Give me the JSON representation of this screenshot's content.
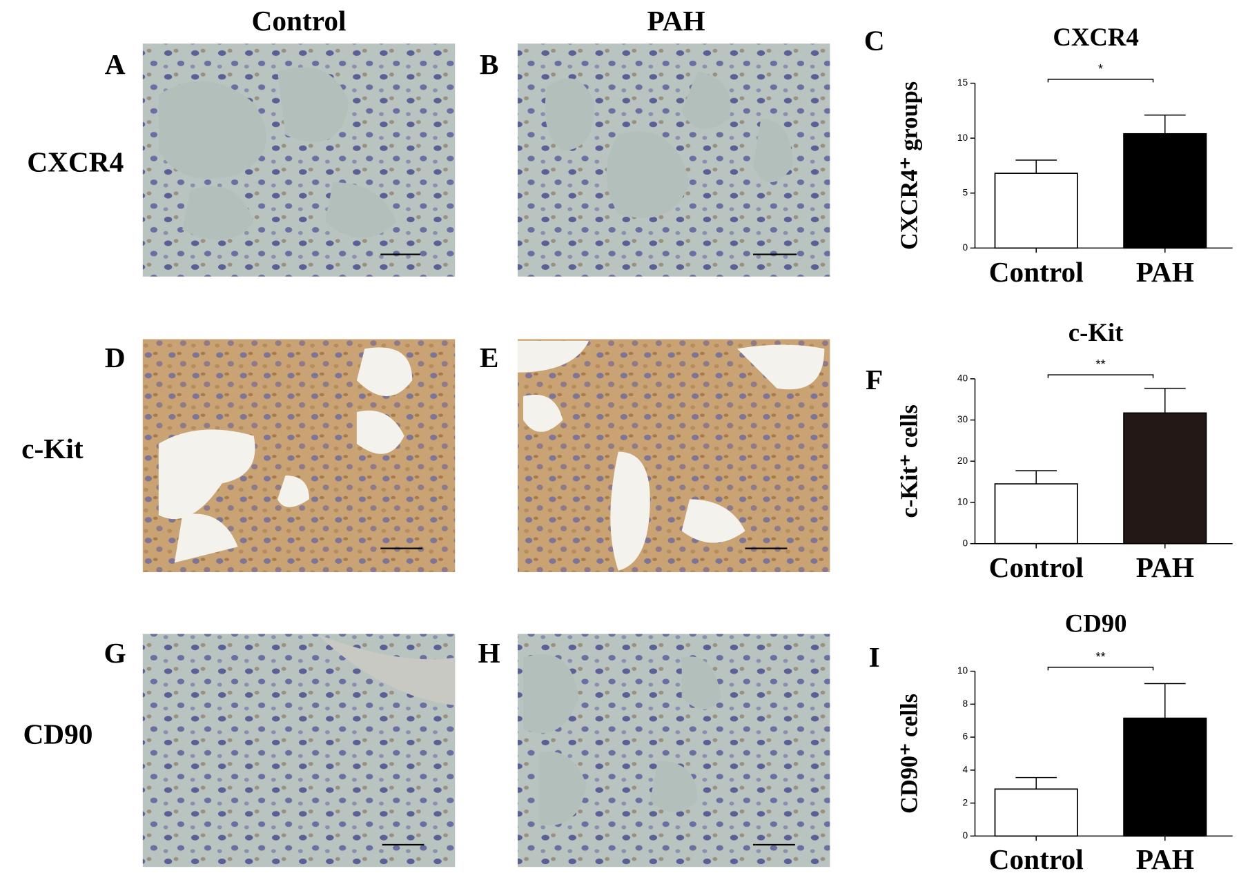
{
  "column_headers": [
    "Control",
    "PAH"
  ],
  "row_labels": [
    "CXCR4",
    "c-Kit",
    "CD90"
  ],
  "panel_labels": [
    "A",
    "B",
    "C",
    "D",
    "E",
    "F",
    "G",
    "H",
    "I"
  ],
  "chart_data": [
    {
      "type": "bar",
      "title": "CXCR4",
      "y_label": "CXCR4⁺ groups",
      "categories": [
        "Control",
        "PAH"
      ],
      "values": [
        6.8,
        10.4
      ],
      "errors": [
        1.2,
        1.7
      ],
      "colors": [
        "#ffffff",
        "#000000"
      ],
      "ylim": [
        0,
        15
      ],
      "yticks": [
        0,
        5,
        10,
        15
      ],
      "annotation": "*"
    },
    {
      "type": "bar",
      "title": "c-Kit",
      "y_label": "c-Kit⁺ cells",
      "categories": [
        "Control",
        "PAH"
      ],
      "values": [
        14.5,
        31.7
      ],
      "errors": [
        3.2,
        6.0
      ],
      "colors": [
        "#ffffff",
        "#231815"
      ],
      "ylim": [
        0,
        40
      ],
      "yticks": [
        0,
        10,
        20,
        30,
        40
      ],
      "annotation": "**"
    },
    {
      "type": "bar",
      "title": "CD90",
      "y_label": "CD90⁺ cells",
      "categories": [
        "Control",
        "PAH"
      ],
      "values": [
        2.85,
        7.15
      ],
      "errors": [
        0.7,
        2.1
      ],
      "colors": [
        "#ffffff",
        "#000000"
      ],
      "ylim": [
        0,
        10
      ],
      "yticks": [
        0,
        2,
        4,
        6,
        8,
        10
      ],
      "annotation": "**"
    }
  ]
}
